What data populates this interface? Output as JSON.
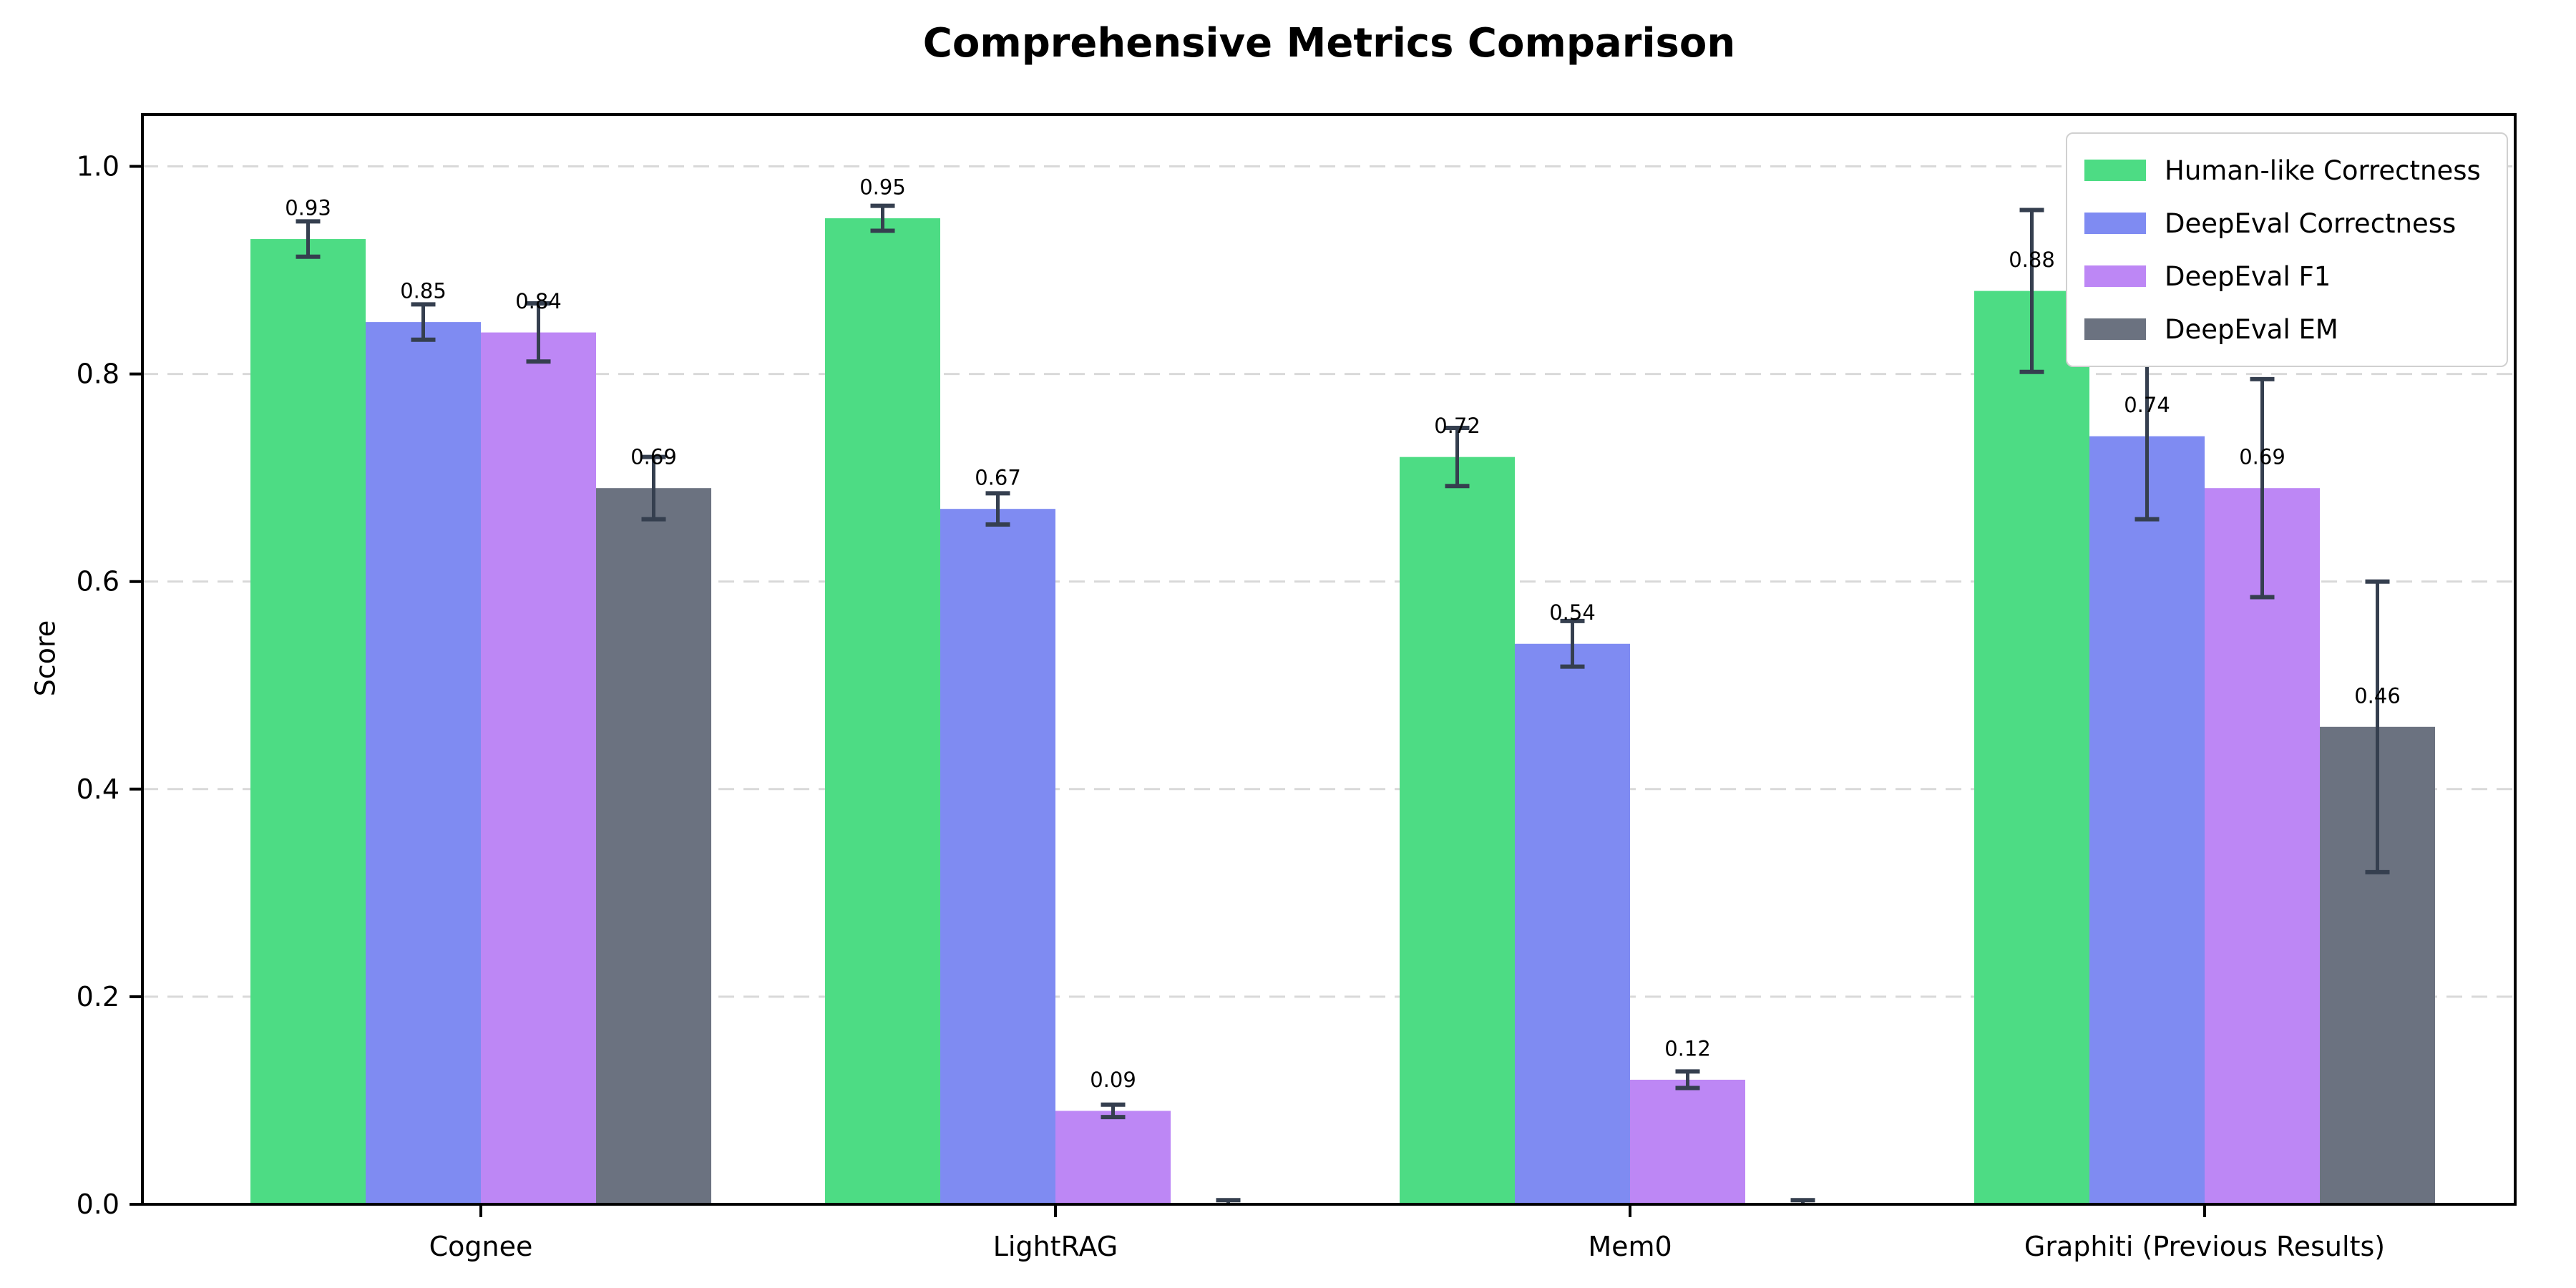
{
  "chart_data": {
    "type": "bar",
    "title": "Comprehensive Metrics Comparison",
    "ylabel": "Score",
    "xlabel": "",
    "categories": [
      "Cognee",
      "LightRAG",
      "Mem0",
      "Graphiti (Previous Results)"
    ],
    "series": [
      {
        "name": "Human-like Correctness",
        "color": "#4ddc84",
        "values": [
          0.93,
          0.95,
          0.72,
          0.88
        ],
        "errors": [
          0.017,
          0.012,
          0.028,
          0.078
        ],
        "labels": [
          "0.93",
          "0.95",
          "0.72",
          "0.88"
        ]
      },
      {
        "name": "DeepEval Correctness",
        "color": "#7f8bf2",
        "values": [
          0.85,
          0.67,
          0.54,
          0.74
        ],
        "errors": [
          0.017,
          0.015,
          0.022,
          0.08
        ],
        "labels": [
          "0.85",
          "0.67",
          "0.54",
          "0.74"
        ]
      },
      {
        "name": "DeepEval F1",
        "color": "#bd87f5",
        "values": [
          0.84,
          0.09,
          0.12,
          0.69
        ],
        "errors": [
          0.028,
          0.006,
          0.008,
          0.105
        ],
        "labels": [
          "0.84",
          "0.09",
          "0.12",
          "0.69"
        ]
      },
      {
        "name": "DeepEval EM",
        "color": "#6b7280",
        "values": [
          0.69,
          0.0,
          0.0,
          0.46
        ],
        "errors": [
          0.03,
          0.004,
          0.004,
          0.14
        ],
        "labels": [
          "0.69",
          "",
          "",
          "0.46"
        ]
      }
    ],
    "ylim": [
      0,
      1.05
    ],
    "yticks": [
      "0.0",
      "0.2",
      "0.4",
      "0.6",
      "0.8",
      "1.0"
    ],
    "grid": "horizontal dashed at yticks",
    "legend_position": "upper right",
    "colors": {
      "error_bar": "#353f4f",
      "grid_line": "#d9d9d9",
      "spine": "#000000",
      "legend_border": "#d0d0d0",
      "text": "#000000"
    }
  }
}
